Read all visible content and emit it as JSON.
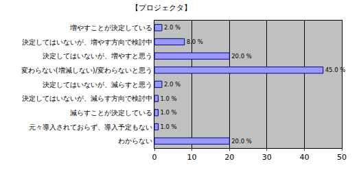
{
  "chart_data": {
    "type": "bar",
    "title": "【プロジェクタ】",
    "orientation": "horizontal",
    "categories": [
      "増やすことが決定している",
      "決定してはいないが、増やす方向で検討中",
      "決定してはいないが、増やすと思う",
      "変わらない(増減しない)/変わらないと思う",
      "決定してはいないが、減らすと思う",
      "決定してはいないが、減らす方向で検討中",
      "減らすことが決定している",
      "元々導入されておらず、導入予定もない",
      "わからない"
    ],
    "values": [
      2,
      8,
      20,
      45,
      2,
      1,
      1,
      1,
      20
    ],
    "value_labels": [
      "2.0 %",
      "8.0 %",
      "20.0 %",
      "45.0 %",
      "2.0 %",
      "1.0 %",
      "1.0 %",
      "1.0 %",
      "20.0 %"
    ],
    "data_labels": true,
    "color": "#9999ff",
    "xlim": [
      0,
      50
    ],
    "xticks": [
      0,
      10,
      20,
      30,
      40,
      50
    ],
    "grid": true
  }
}
